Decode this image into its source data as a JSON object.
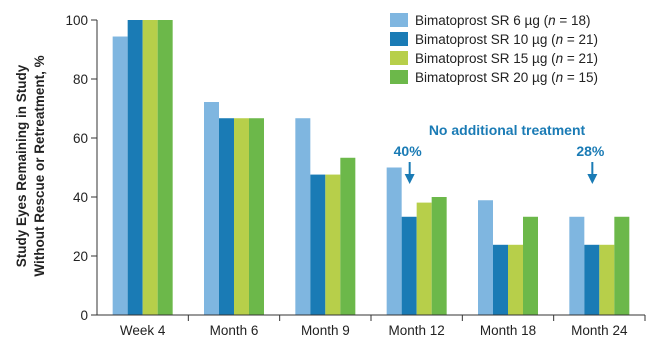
{
  "chart_data": {
    "type": "bar",
    "categories": [
      "Week 4",
      "Month 6",
      "Month 9",
      "Month 12",
      "Month 18",
      "Month 24"
    ],
    "series": [
      {
        "name": "Bimatoprost SR 6 µg",
        "n": "18",
        "color": "#7fb6e0",
        "values": [
          94.4,
          72.2,
          66.7,
          50.0,
          38.9,
          33.3
        ]
      },
      {
        "name": "Bimatoprost SR 10 µg",
        "n": "21",
        "color": "#1a7bb5",
        "values": [
          100,
          66.7,
          47.6,
          33.3,
          23.8,
          23.8
        ]
      },
      {
        "name": "Bimatoprost SR 15 µg",
        "n": "21",
        "color": "#b7cf4a",
        "values": [
          100,
          66.7,
          47.6,
          38.1,
          23.8,
          23.8
        ]
      },
      {
        "name": "Bimatoprost SR 20 µg",
        "n": "15",
        "color": "#6cb84a",
        "values": [
          100,
          66.7,
          53.3,
          40.0,
          33.3,
          33.3
        ]
      }
    ],
    "ylabel_line1": "Study Eyes Remaining in Study",
    "ylabel_line2": "Without Rescue or Retreatment, %",
    "ylim": [
      0,
      100
    ],
    "yticks": [
      0,
      20,
      40,
      60,
      80,
      100
    ],
    "legend_position": "top-right",
    "grid": false,
    "annotations": {
      "header": "No additional treatment",
      "color": "#1a7bb5",
      "markers": [
        {
          "category": "Month 12",
          "label": "40%"
        },
        {
          "category": "Month 24",
          "label": "28%"
        }
      ]
    }
  }
}
